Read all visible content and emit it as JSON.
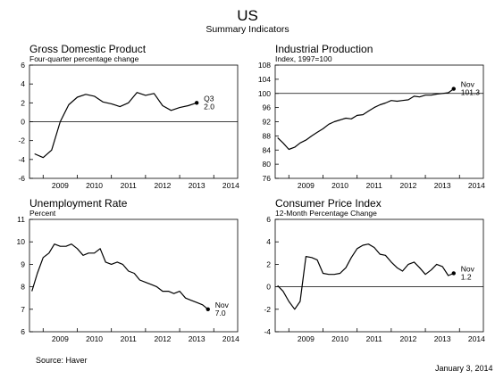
{
  "header": {
    "title": "US",
    "subtitle": "Summary Indicators"
  },
  "footer": {
    "source": "Source:  Haver",
    "date": "January 3, 2014"
  },
  "chart_data": [
    {
      "type": "line",
      "title": "Gross Domestic Product",
      "subtitle": "Four-quarter percentage change",
      "x_ticks": [
        "2009",
        "2010",
        "2011",
        "2012",
        "2013",
        "2014"
      ],
      "xlim": [
        2008.6,
        2014.7
      ],
      "ylim": [
        -6,
        6
      ],
      "yticks": [
        -6,
        -4,
        -2,
        0,
        2,
        4,
        6
      ],
      "zero_line": true,
      "grid": false,
      "series": [
        {
          "x": [
            2008.75,
            2009.0,
            2009.25,
            2009.5,
            2009.75,
            2010.0,
            2010.25,
            2010.5,
            2010.75,
            2011.0,
            2011.25,
            2011.5,
            2011.75,
            2012.0,
            2012.25,
            2012.5,
            2012.75,
            2013.0,
            2013.25,
            2013.5
          ],
          "values": [
            -3.4,
            -3.8,
            -3.0,
            0.0,
            1.8,
            2.6,
            2.9,
            2.7,
            2.1,
            1.9,
            1.6,
            2.0,
            3.1,
            2.8,
            3.0,
            1.7,
            1.2,
            1.5,
            1.7,
            2.0
          ]
        }
      ],
      "annotation": {
        "lines": [
          "Q3",
          "2.0"
        ],
        "x": 2013.5,
        "y": 2.0
      }
    },
    {
      "type": "line",
      "title": "Industrial Production",
      "subtitle": "Index, 1997=100",
      "x_ticks": [
        "2009",
        "2010",
        "2011",
        "2012",
        "2013",
        "2014"
      ],
      "xlim": [
        2008.6,
        2014.7
      ],
      "ylim": [
        76,
        108
      ],
      "yticks": [
        76,
        80,
        84,
        88,
        92,
        96,
        100,
        104,
        108
      ],
      "reference_line": 100,
      "grid": false,
      "series": [
        {
          "x": [
            2008.67,
            2008.83,
            2009.0,
            2009.17,
            2009.33,
            2009.5,
            2009.67,
            2009.83,
            2010.0,
            2010.17,
            2010.33,
            2010.5,
            2010.67,
            2010.83,
            2011.0,
            2011.17,
            2011.33,
            2011.5,
            2011.67,
            2011.83,
            2012.0,
            2012.17,
            2012.33,
            2012.5,
            2012.67,
            2012.83,
            2013.0,
            2013.17,
            2013.33,
            2013.5,
            2013.67,
            2013.83
          ],
          "values": [
            87.5,
            86.0,
            84.2,
            84.8,
            86.0,
            86.8,
            88.0,
            89.0,
            90.0,
            91.3,
            92.0,
            92.5,
            93.0,
            92.8,
            93.8,
            94.0,
            95.0,
            96.0,
            96.8,
            97.3,
            98.0,
            97.8,
            98.0,
            98.2,
            99.2,
            99.0,
            99.5,
            99.5,
            99.8,
            100.0,
            100.2,
            101.3
          ]
        }
      ],
      "annotation": {
        "lines": [
          "Nov",
          "101.3"
        ],
        "x": 2013.83,
        "y": 101.3
      }
    },
    {
      "type": "line",
      "title": "Unemployment Rate",
      "subtitle": "Percent",
      "x_ticks": [
        "2009",
        "2010",
        "2011",
        "2012",
        "2013",
        "2014"
      ],
      "xlim": [
        2008.6,
        2014.7
      ],
      "ylim": [
        6,
        11
      ],
      "yticks": [
        6,
        7,
        8,
        9,
        10,
        11
      ],
      "grid": false,
      "series": [
        {
          "x": [
            2008.67,
            2008.83,
            2009.0,
            2009.17,
            2009.33,
            2009.5,
            2009.67,
            2009.83,
            2010.0,
            2010.17,
            2010.33,
            2010.5,
            2010.67,
            2010.83,
            2011.0,
            2011.17,
            2011.33,
            2011.5,
            2011.67,
            2011.83,
            2012.0,
            2012.17,
            2012.33,
            2012.5,
            2012.67,
            2012.83,
            2013.0,
            2013.17,
            2013.33,
            2013.5,
            2013.67,
            2013.83
          ],
          "values": [
            7.8,
            8.6,
            9.3,
            9.5,
            9.9,
            9.8,
            9.8,
            9.9,
            9.7,
            9.4,
            9.5,
            9.5,
            9.7,
            9.1,
            9.0,
            9.1,
            9.0,
            8.7,
            8.6,
            8.3,
            8.2,
            8.1,
            8.0,
            7.8,
            7.8,
            7.7,
            7.8,
            7.5,
            7.4,
            7.3,
            7.2,
            7.0
          ]
        }
      ],
      "annotation": {
        "lines": [
          "Nov",
          "7.0"
        ],
        "x": 2013.83,
        "y": 7.0
      }
    },
    {
      "type": "line",
      "title": "Consumer Price Index",
      "subtitle": "12-Month Percentage Change",
      "x_ticks": [
        "2009",
        "2010",
        "2011",
        "2012",
        "2013",
        "2014"
      ],
      "xlim": [
        2008.6,
        2014.7
      ],
      "ylim": [
        -4,
        6
      ],
      "yticks": [
        -4,
        -2,
        0,
        2,
        4,
        6
      ],
      "zero_line": true,
      "grid": false,
      "series": [
        {
          "x": [
            2008.67,
            2008.83,
            2009.0,
            2009.17,
            2009.33,
            2009.5,
            2009.67,
            2009.83,
            2010.0,
            2010.17,
            2010.33,
            2010.5,
            2010.67,
            2010.83,
            2011.0,
            2011.17,
            2011.33,
            2011.5,
            2011.67,
            2011.83,
            2012.0,
            2012.17,
            2012.33,
            2012.5,
            2012.67,
            2012.83,
            2013.0,
            2013.17,
            2013.33,
            2013.5,
            2013.67,
            2013.83
          ],
          "values": [
            0.1,
            -0.4,
            -1.3,
            -2.0,
            -1.3,
            2.7,
            2.6,
            2.4,
            1.2,
            1.1,
            1.1,
            1.2,
            1.7,
            2.6,
            3.4,
            3.7,
            3.8,
            3.5,
            2.9,
            2.8,
            2.2,
            1.7,
            1.4,
            2.0,
            2.2,
            1.7,
            1.1,
            1.5,
            2.0,
            1.8,
            1.0,
            1.2
          ]
        }
      ],
      "annotation": {
        "lines": [
          "Nov",
          "1.2"
        ],
        "x": 2013.83,
        "y": 1.2
      }
    }
  ]
}
